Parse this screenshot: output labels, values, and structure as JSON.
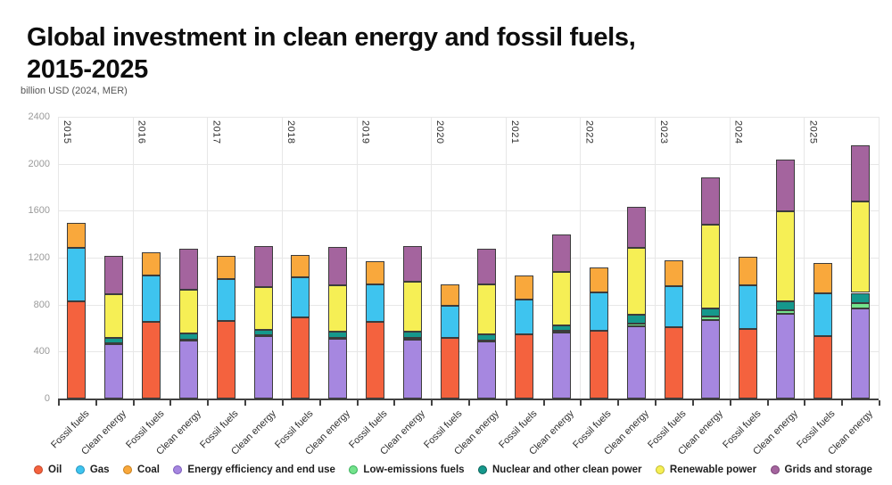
{
  "header": {
    "title": "Global investment in clean energy and fossil fuels, 2015-2025",
    "subtitle": "billion USD (2024, MER)"
  },
  "chart_data": {
    "type": "bar",
    "stacked": true,
    "title": "Global investment in clean energy and fossil fuels, 2015-2025",
    "unit_label": "billion USD (2024, MER)",
    "legend_position": "bottom",
    "grid": true,
    "years": [
      "2015",
      "2016",
      "2017",
      "2018",
      "2019",
      "2020",
      "2021",
      "2022",
      "2023",
      "2024",
      "2025"
    ],
    "bar_categories": [
      "Fossil fuels",
      "Clean energy"
    ],
    "y_axis": {
      "min": 0,
      "max": 2400,
      "step": 400,
      "ticks": [
        0,
        400,
        800,
        1200,
        1600,
        2000,
        2400
      ]
    },
    "series": [
      {
        "name": "Oil",
        "group": "fossil",
        "color": "#F4623E",
        "ring": "#C44628",
        "values": [
          830,
          650,
          660,
          690,
          655,
          515,
          550,
          580,
          605,
          595,
          535
        ]
      },
      {
        "name": "Gas",
        "group": "fossil",
        "color": "#3EC4EF",
        "ring": "#2694BE",
        "values": [
          450,
          400,
          360,
          345,
          315,
          275,
          295,
          325,
          350,
          370,
          360
        ]
      },
      {
        "name": "Coal",
        "group": "fossil",
        "color": "#F9A83C",
        "ring": "#C77F1C",
        "values": [
          220,
          195,
          195,
          185,
          200,
          185,
          205,
          215,
          220,
          245,
          260
        ]
      },
      {
        "name": "Energy efficiency and end use",
        "group": "clean",
        "color": "#A687E0",
        "ring": "#7B5BBB",
        "values": [
          460,
          495,
          530,
          510,
          505,
          485,
          560,
          615,
          665,
          720,
          770
        ]
      },
      {
        "name": "Low-emissions fuels",
        "group": "clean",
        "color": "#74E38C",
        "ring": "#35AE59",
        "values": [
          10,
          10,
          10,
          10,
          10,
          10,
          20,
          25,
          35,
          35,
          45
        ]
      },
      {
        "name": "Nuclear and other clean power",
        "group": "clean",
        "color": "#15988C",
        "ring": "#0A6259",
        "values": [
          45,
          50,
          45,
          50,
          55,
          50,
          40,
          75,
          70,
          75,
          85
        ]
      },
      {
        "name": "Renewable power",
        "group": "clean",
        "color": "#F6EF55",
        "ring": "#BFB82D",
        "values": [
          370,
          370,
          365,
          395,
          425,
          430,
          455,
          570,
          710,
          765,
          775
        ]
      },
      {
        "name": "Grids and storage",
        "group": "clean",
        "color": "#A4649E",
        "ring": "#7A4175",
        "values": [
          330,
          350,
          345,
          325,
          300,
          300,
          325,
          350,
          400,
          440,
          485
        ]
      }
    ]
  }
}
